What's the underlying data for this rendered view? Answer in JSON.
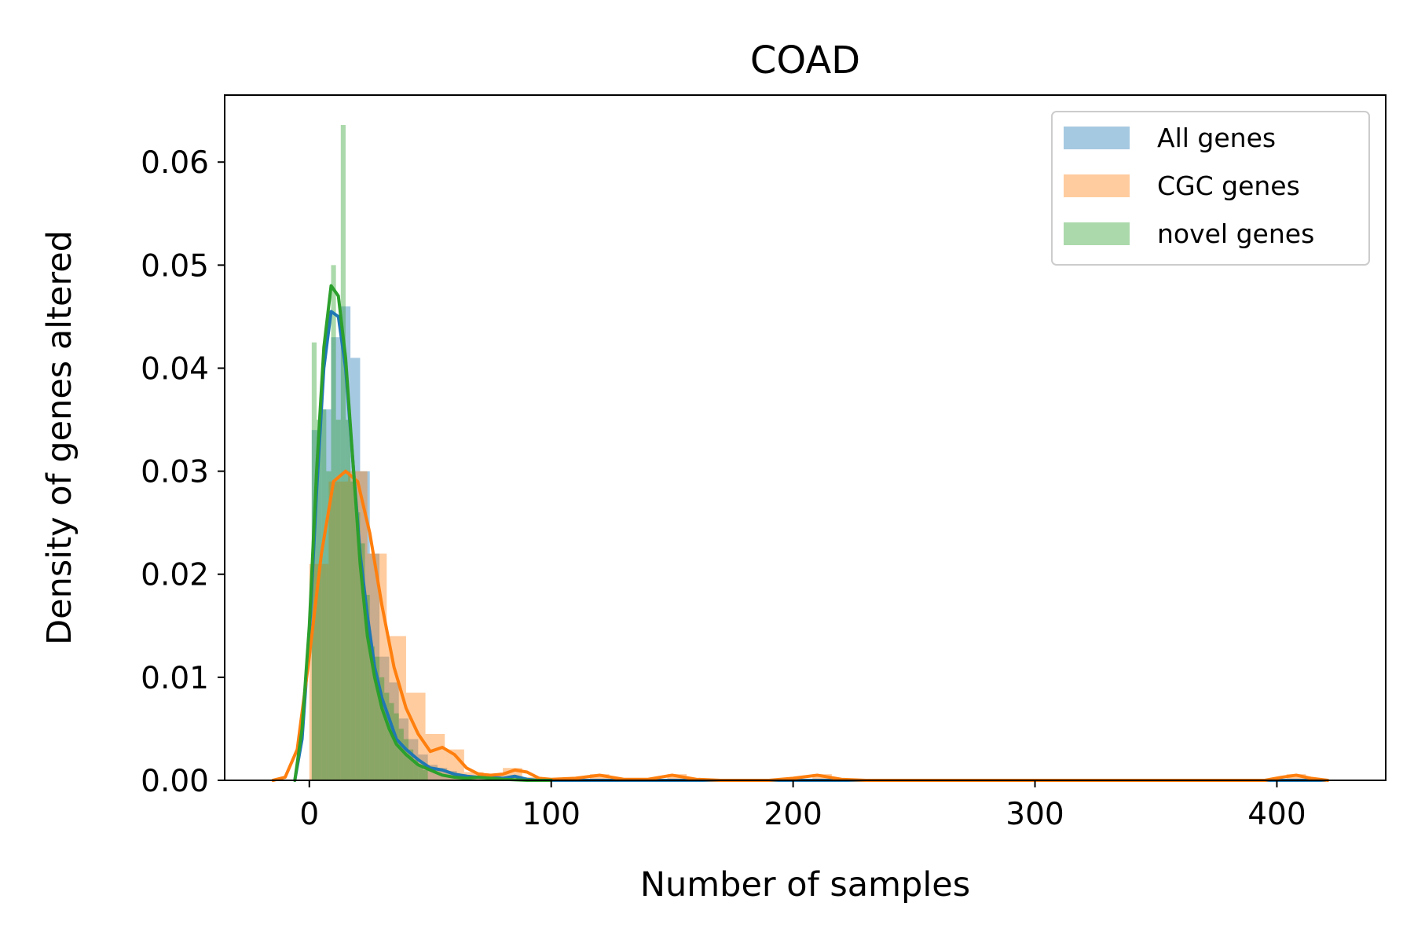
{
  "chart_data": {
    "type": "bar",
    "title": "COAD",
    "xlabel": "Number of samples",
    "ylabel": "Density of genes altered",
    "xlim": [
      -35,
      445
    ],
    "ylim": [
      0,
      0.0665
    ],
    "xticks": [
      0,
      100,
      200,
      300,
      400
    ],
    "yticks": [
      0.0,
      0.01,
      0.02,
      0.03,
      0.04,
      0.05,
      0.06
    ],
    "ytick_labels": [
      "0.00",
      "0.01",
      "0.02",
      "0.03",
      "0.04",
      "0.05",
      "0.06"
    ],
    "grid": false,
    "legend_position": "top-right",
    "series": [
      {
        "name": "All genes",
        "color": "#1f77b4",
        "histogram": {
          "bins": [
            [
              1,
              5,
              0.034
            ],
            [
              5,
              9,
              0.036
            ],
            [
              9,
              13,
              0.043
            ],
            [
              13,
              17,
              0.046
            ],
            [
              17,
              21,
              0.041
            ],
            [
              21,
              25,
              0.03
            ],
            [
              25,
              29,
              0.022
            ],
            [
              29,
              33,
              0.012
            ],
            [
              33,
              37,
              0.0095
            ],
            [
              37,
              41,
              0.006
            ],
            [
              41,
              45,
              0.004
            ],
            [
              45,
              49,
              0.0025
            ],
            [
              49,
              53,
              0.0015
            ],
            [
              53,
              57,
              0.0012
            ],
            [
              57,
              61,
              0.0009
            ],
            [
              61,
              65,
              0.0006
            ],
            [
              65,
              69,
              0.0004
            ],
            [
              69,
              73,
              0.0003
            ],
            [
              73,
              77,
              0.0002
            ],
            [
              77,
              81,
              0.0002
            ],
            [
              81,
              85,
              0.0002
            ],
            [
              85,
              89,
              0.0002
            ]
          ]
        },
        "kde": {
          "x": [
            -6,
            -3,
            0,
            3,
            6,
            9,
            12,
            15,
            18,
            21,
            24,
            27,
            30,
            33,
            36,
            40,
            45,
            50,
            55,
            60,
            65,
            70,
            75,
            80,
            85,
            90,
            95,
            100,
            420
          ],
          "y": [
            0,
            0.004,
            0.014,
            0.028,
            0.04,
            0.0455,
            0.045,
            0.04,
            0.031,
            0.022,
            0.016,
            0.011,
            0.008,
            0.006,
            0.004,
            0.003,
            0.002,
            0.0012,
            0.001,
            0.0006,
            0.0004,
            0.0003,
            0.0003,
            0.0002,
            0.0004,
            0.0001,
            0,
            0,
            0
          ]
        }
      },
      {
        "name": "CGC genes",
        "color": "#ff7f0e",
        "histogram": {
          "bins": [
            [
              0,
              8,
              0.021
            ],
            [
              8,
              16,
              0.029
            ],
            [
              16,
              24,
              0.03
            ],
            [
              24,
              32,
              0.022
            ],
            [
              32,
              40,
              0.014
            ],
            [
              40,
              48,
              0.0085
            ],
            [
              48,
              56,
              0.0045
            ],
            [
              56,
              64,
              0.003
            ],
            [
              64,
              72,
              0.0008
            ],
            [
              72,
              80,
              0.0005
            ],
            [
              80,
              88,
              0.0012
            ],
            [
              88,
              96,
              0.0003
            ],
            [
              116,
              124,
              0.0006
            ],
            [
              148,
              156,
              0.0006
            ],
            [
              208,
              216,
              0.0006
            ],
            [
              404,
              412,
              0.0006
            ]
          ]
        },
        "kde": {
          "x": [
            -15,
            -10,
            -5,
            0,
            5,
            10,
            15,
            20,
            25,
            30,
            35,
            40,
            45,
            50,
            55,
            60,
            65,
            70,
            75,
            80,
            85,
            90,
            95,
            100,
            110,
            120,
            130,
            140,
            150,
            160,
            170,
            190,
            200,
            210,
            220,
            230,
            395,
            402,
            408,
            414,
            421
          ],
          "y": [
            0,
            0.0003,
            0.003,
            0.012,
            0.022,
            0.029,
            0.03,
            0.029,
            0.024,
            0.017,
            0.011,
            0.007,
            0.0045,
            0.0028,
            0.0032,
            0.0025,
            0.0012,
            0.0006,
            0.0005,
            0.0006,
            0.001,
            0.0008,
            0.0002,
            0.0001,
            0.0002,
            0.0005,
            0.0001,
            0.0001,
            0.0005,
            0.0001,
            0,
            0,
            0.0002,
            0.0005,
            0.0001,
            0,
            0,
            0.0003,
            0.0005,
            0.0002,
            0
          ]
        }
      },
      {
        "name": "novel genes",
        "color": "#2ca02c",
        "histogram": {
          "bins": [
            [
              1,
              3,
              0.0425
            ],
            [
              3,
              5,
              0.035
            ],
            [
              5,
              7,
              0.036
            ],
            [
              7,
              9,
              0.03
            ],
            [
              9,
              11,
              0.05
            ],
            [
              11,
              13,
              0.035
            ],
            [
              13,
              15,
              0.0636
            ],
            [
              15,
              17,
              0.035
            ],
            [
              17,
              19,
              0.029
            ],
            [
              19,
              21,
              0.026
            ],
            [
              21,
              23,
              0.023
            ],
            [
              23,
              25,
              0.018
            ],
            [
              25,
              27,
              0.013
            ],
            [
              27,
              29,
              0.012
            ],
            [
              29,
              31,
              0.01
            ],
            [
              31,
              33,
              0.0085
            ],
            [
              33,
              35,
              0.0075
            ],
            [
              35,
              37,
              0.0065
            ],
            [
              37,
              39,
              0.005
            ],
            [
              39,
              41,
              0.004
            ],
            [
              41,
              43,
              0.003
            ],
            [
              43,
              45,
              0.002
            ],
            [
              45,
              47,
              0.0015
            ],
            [
              47,
              49,
              0.001
            ]
          ]
        },
        "kde": {
          "x": [
            -6,
            -3,
            0,
            3,
            6,
            9,
            12,
            15,
            18,
            21,
            24,
            27,
            30,
            33,
            36,
            40,
            45,
            50,
            55,
            60,
            65,
            70,
            75,
            80,
            90,
            100
          ],
          "y": [
            0,
            0.005,
            0.015,
            0.03,
            0.042,
            0.048,
            0.047,
            0.041,
            0.031,
            0.021,
            0.014,
            0.01,
            0.007,
            0.005,
            0.0035,
            0.0025,
            0.0015,
            0.001,
            0.0005,
            0.0003,
            0.0002,
            0.0003,
            0.0002,
            0.0001,
            0,
            0
          ]
        }
      }
    ]
  }
}
